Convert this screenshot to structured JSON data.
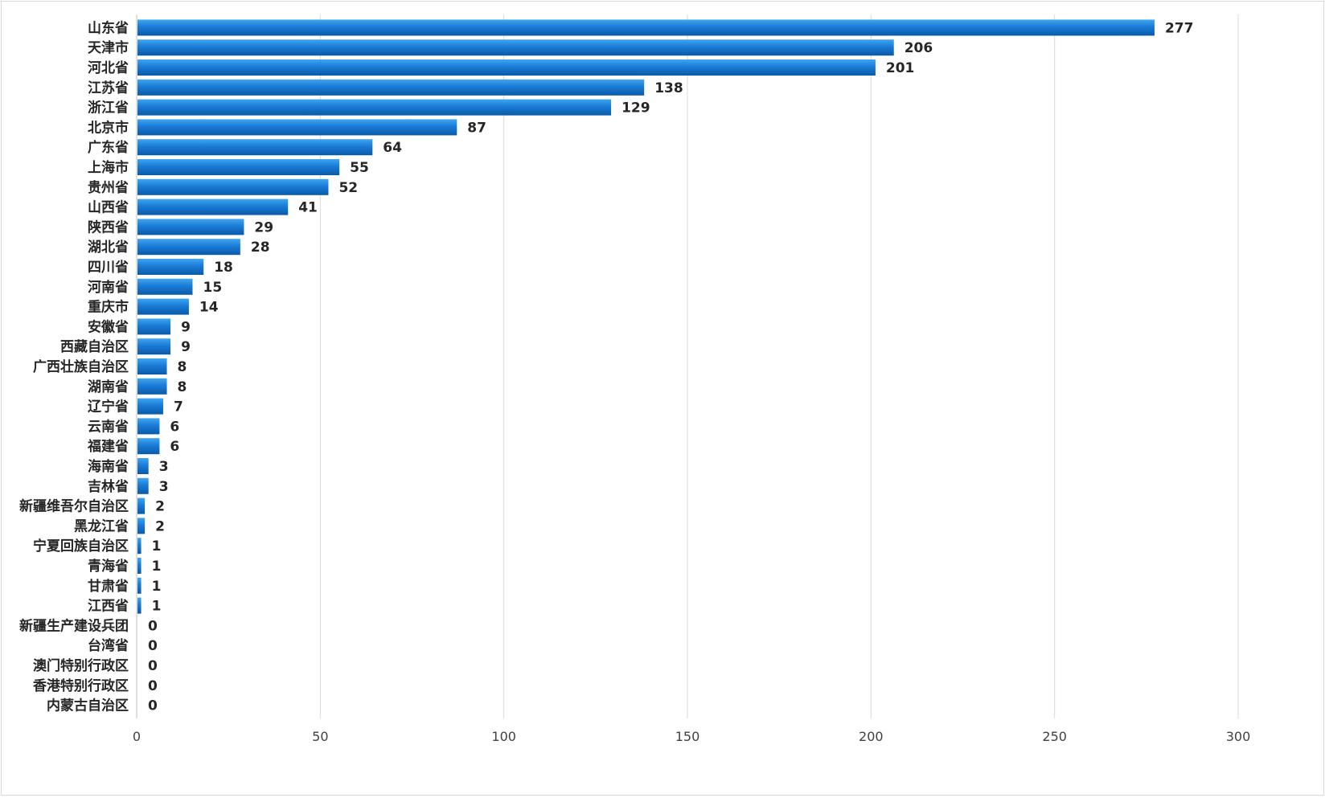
{
  "chart_data": {
    "type": "bar",
    "orientation": "horizontal",
    "categories": [
      "山东省",
      "天津市",
      "河北省",
      "江苏省",
      "浙江省",
      "北京市",
      "广东省",
      "上海市",
      "贵州省",
      "山西省",
      "陕西省",
      "湖北省",
      "四川省",
      "河南省",
      "重庆市",
      "安徽省",
      "西藏自治区",
      "广西壮族自治区",
      "湖南省",
      "辽宁省",
      "云南省",
      "福建省",
      "海南省",
      "吉林省",
      "新疆维吾尔自治区",
      "黑龙江省",
      "宁夏回族自治区",
      "青海省",
      "甘肃省",
      "江西省",
      "新疆生产建设兵团",
      "台湾省",
      "澳门特别行政区",
      "香港特别行政区",
      "内蒙古自治区"
    ],
    "values": [
      277,
      206,
      201,
      138,
      129,
      87,
      64,
      55,
      52,
      41,
      29,
      28,
      18,
      15,
      14,
      9,
      9,
      8,
      8,
      7,
      6,
      6,
      3,
      3,
      2,
      2,
      1,
      1,
      1,
      1,
      0,
      0,
      0,
      0,
      0
    ],
    "xlim": [
      0,
      300
    ],
    "xticks": [
      0,
      50,
      100,
      150,
      200,
      250,
      300
    ],
    "grid": true,
    "legend": "none",
    "colors": {
      "bar_light": "#3ea6f0",
      "bar_mid": "#1a7bd6",
      "bar_dark": "#0a5aa8",
      "grid": "#d9d9d9",
      "text": "#262626"
    }
  }
}
